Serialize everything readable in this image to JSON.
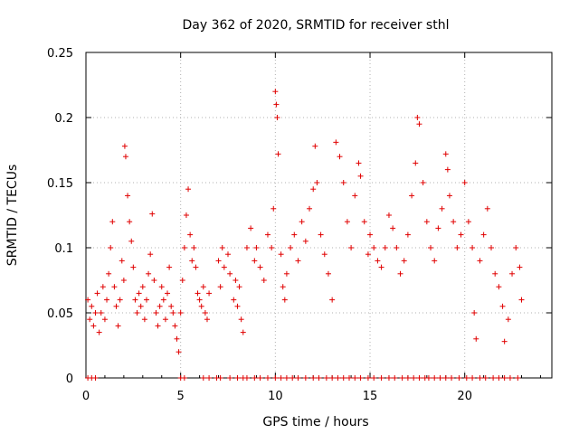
{
  "chart_data": {
    "type": "scatter",
    "title": "Day 362 of 2020, SRMTID for receiver sthl",
    "xlabel": "GPS time / hours",
    "ylabel": "SRMTID / TECUs",
    "xlim": [
      0,
      24.6
    ],
    "ylim": [
      0,
      0.25
    ],
    "x_ticks": [
      0,
      5,
      10,
      15,
      20
    ],
    "x_tick_labels": [
      "0",
      "5",
      "10",
      "15",
      "20"
    ],
    "y_ticks": [
      0,
      0.05,
      0.1,
      0.15,
      0.2,
      0.25
    ],
    "y_tick_labels": [
      "0",
      "0.05",
      "0.1",
      "0.15",
      "0.2",
      "0.25"
    ],
    "grid": true,
    "marker": "+",
    "series": [
      {
        "name": "SRMTID",
        "color": "#e00000",
        "points": [
          [
            0.1,
            0.06
          ],
          [
            0.2,
            0.045
          ],
          [
            0.3,
            0.055
          ],
          [
            0.4,
            0.04
          ],
          [
            0.5,
            0.05
          ],
          [
            0.6,
            0.065
          ],
          [
            0.7,
            0.035
          ],
          [
            0.8,
            0.05
          ],
          [
            0.9,
            0.07
          ],
          [
            1.0,
            0.045
          ],
          [
            1.1,
            0.06
          ],
          [
            1.2,
            0.08
          ],
          [
            1.3,
            0.1
          ],
          [
            1.4,
            0.12
          ],
          [
            1.5,
            0.07
          ],
          [
            1.6,
            0.055
          ],
          [
            1.7,
            0.04
          ],
          [
            1.8,
            0.06
          ],
          [
            1.9,
            0.09
          ],
          [
            2.0,
            0.075
          ],
          [
            2.05,
            0.178
          ],
          [
            2.1,
            0.17
          ],
          [
            2.2,
            0.14
          ],
          [
            2.3,
            0.12
          ],
          [
            2.4,
            0.105
          ],
          [
            2.5,
            0.085
          ],
          [
            2.6,
            0.06
          ],
          [
            2.7,
            0.05
          ],
          [
            2.8,
            0.065
          ],
          [
            2.9,
            0.055
          ],
          [
            3.0,
            0.07
          ],
          [
            3.1,
            0.045
          ],
          [
            3.2,
            0.06
          ],
          [
            3.3,
            0.08
          ],
          [
            3.4,
            0.095
          ],
          [
            3.5,
            0.126
          ],
          [
            3.6,
            0.075
          ],
          [
            3.7,
            0.05
          ],
          [
            3.8,
            0.04
          ],
          [
            3.9,
            0.055
          ],
          [
            4.0,
            0.07
          ],
          [
            4.1,
            0.06
          ],
          [
            4.2,
            0.045
          ],
          [
            4.3,
            0.065
          ],
          [
            4.4,
            0.085
          ],
          [
            4.5,
            0.055
          ],
          [
            4.6,
            0.05
          ],
          [
            4.7,
            0.04
          ],
          [
            4.8,
            0.03
          ],
          [
            4.9,
            0.02
          ],
          [
            5.0,
            0.05
          ],
          [
            5.1,
            0.075
          ],
          [
            5.2,
            0.1
          ],
          [
            5.3,
            0.125
          ],
          [
            5.4,
            0.145
          ],
          [
            5.5,
            0.11
          ],
          [
            5.6,
            0.09
          ],
          [
            5.7,
            0.1
          ],
          [
            5.8,
            0.085
          ],
          [
            5.9,
            0.065
          ],
          [
            6.0,
            0.06
          ],
          [
            6.1,
            0.055
          ],
          [
            6.2,
            0.07
          ],
          [
            6.3,
            0.05
          ],
          [
            6.4,
            0.045
          ],
          [
            6.5,
            0.065
          ],
          [
            7.0,
            0.09
          ],
          [
            7.1,
            0.07
          ],
          [
            7.2,
            0.1
          ],
          [
            7.3,
            0.085
          ],
          [
            7.5,
            0.095
          ],
          [
            7.6,
            0.08
          ],
          [
            7.8,
            0.06
          ],
          [
            7.9,
            0.075
          ],
          [
            8.0,
            0.055
          ],
          [
            8.1,
            0.07
          ],
          [
            8.2,
            0.045
          ],
          [
            8.3,
            0.035
          ],
          [
            8.5,
            0.1
          ],
          [
            8.7,
            0.115
          ],
          [
            8.9,
            0.09
          ],
          [
            9.0,
            0.1
          ],
          [
            9.2,
            0.085
          ],
          [
            9.4,
            0.075
          ],
          [
            9.6,
            0.11
          ],
          [
            9.8,
            0.1
          ],
          [
            9.9,
            0.13
          ],
          [
            10.0,
            0.22
          ],
          [
            10.05,
            0.21
          ],
          [
            10.1,
            0.2
          ],
          [
            10.15,
            0.172
          ],
          [
            10.3,
            0.095
          ],
          [
            10.4,
            0.07
          ],
          [
            10.5,
            0.06
          ],
          [
            10.6,
            0.08
          ],
          [
            10.8,
            0.1
          ],
          [
            11.0,
            0.11
          ],
          [
            11.2,
            0.09
          ],
          [
            11.4,
            0.12
          ],
          [
            11.6,
            0.105
          ],
          [
            11.8,
            0.13
          ],
          [
            12.0,
            0.145
          ],
          [
            12.1,
            0.178
          ],
          [
            12.2,
            0.15
          ],
          [
            12.4,
            0.11
          ],
          [
            12.6,
            0.095
          ],
          [
            12.8,
            0.08
          ],
          [
            13.0,
            0.06
          ],
          [
            13.2,
            0.181
          ],
          [
            13.4,
            0.17
          ],
          [
            13.6,
            0.15
          ],
          [
            13.8,
            0.12
          ],
          [
            14.0,
            0.1
          ],
          [
            14.2,
            0.14
          ],
          [
            14.4,
            0.165
          ],
          [
            14.5,
            0.155
          ],
          [
            14.7,
            0.12
          ],
          [
            14.9,
            0.095
          ],
          [
            15.0,
            0.11
          ],
          [
            15.2,
            0.1
          ],
          [
            15.4,
            0.09
          ],
          [
            15.6,
            0.085
          ],
          [
            15.8,
            0.1
          ],
          [
            16.0,
            0.125
          ],
          [
            16.2,
            0.115
          ],
          [
            16.4,
            0.1
          ],
          [
            16.6,
            0.08
          ],
          [
            16.8,
            0.09
          ],
          [
            17.0,
            0.11
          ],
          [
            17.2,
            0.14
          ],
          [
            17.4,
            0.165
          ],
          [
            17.5,
            0.2
          ],
          [
            17.6,
            0.195
          ],
          [
            17.8,
            0.15
          ],
          [
            18.0,
            0.12
          ],
          [
            18.2,
            0.1
          ],
          [
            18.4,
            0.09
          ],
          [
            18.6,
            0.115
          ],
          [
            18.8,
            0.13
          ],
          [
            19.0,
            0.172
          ],
          [
            19.1,
            0.16
          ],
          [
            19.2,
            0.14
          ],
          [
            19.4,
            0.12
          ],
          [
            19.6,
            0.1
          ],
          [
            19.8,
            0.11
          ],
          [
            20.0,
            0.15
          ],
          [
            20.2,
            0.12
          ],
          [
            20.4,
            0.1
          ],
          [
            20.5,
            0.05
          ],
          [
            20.6,
            0.03
          ],
          [
            20.8,
            0.09
          ],
          [
            21.0,
            0.11
          ],
          [
            21.2,
            0.13
          ],
          [
            21.4,
            0.1
          ],
          [
            21.6,
            0.08
          ],
          [
            21.8,
            0.07
          ],
          [
            22.0,
            0.055
          ],
          [
            22.1,
            0.028
          ],
          [
            22.3,
            0.045
          ],
          [
            22.5,
            0.08
          ],
          [
            22.7,
            0.1
          ],
          [
            22.9,
            0.085
          ],
          [
            23.0,
            0.06
          ]
        ]
      }
    ],
    "zero_marks_x": [
      0.1,
      0.3,
      0.5,
      5.0,
      5.2,
      6.2,
      6.5,
      6.9,
      7.1,
      7.6,
      8.0,
      8.3,
      8.5,
      8.9,
      9.2,
      9.6,
      10.0,
      10.3,
      10.6,
      10.9,
      11.2,
      11.6,
      12.0,
      12.3,
      12.7,
      13.0,
      13.3,
      13.6,
      13.9,
      14.2,
      14.5,
      14.9,
      15.2,
      15.6,
      16.0,
      16.3,
      16.7,
      17.0,
      17.3,
      17.6,
      17.9,
      18.1,
      18.4,
      18.7,
      19.0,
      19.3,
      19.7,
      20.1,
      20.4,
      20.8,
      21.1,
      21.5,
      21.8,
      22.1,
      22.4,
      22.8
    ]
  }
}
